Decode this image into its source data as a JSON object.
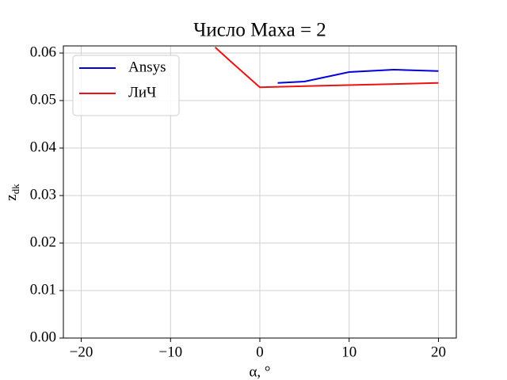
{
  "chart_data": {
    "type": "line",
    "title": "Число Маха = 2",
    "xlabel": "α, °",
    "ylabel": {
      "text": "z",
      "subscript": "dk"
    },
    "xlim": [
      -22,
      22
    ],
    "ylim": [
      0,
      0.0615
    ],
    "xticks": [
      {
        "value": -20,
        "label": "−20"
      },
      {
        "value": -10,
        "label": "−10"
      },
      0,
      10,
      20
    ],
    "yticks": [
      {
        "value": 0,
        "label": "0.00"
      },
      {
        "value": 0.01,
        "label": "0.01"
      },
      {
        "value": 0.02,
        "label": "0.02"
      },
      {
        "value": 0.03,
        "label": "0.03"
      },
      {
        "value": 0.04,
        "label": "0.04"
      },
      {
        "value": 0.05,
        "label": "0.05"
      },
      {
        "value": 0.06,
        "label": "0.06"
      }
    ],
    "grid": true,
    "legend": "upper left",
    "series": [
      {
        "name": "Ansys",
        "color": "#0000dd",
        "x": [
          2,
          5,
          10,
          15,
          20
        ],
        "values": [
          0.0537,
          0.054,
          0.056,
          0.0565,
          0.0562
        ]
      },
      {
        "name": "ЛиЧ",
        "color": "#ee1111",
        "x": [
          -5,
          -3,
          0,
          20
        ],
        "values": [
          0.0612,
          0.0578,
          0.0528,
          0.0537
        ]
      }
    ]
  }
}
